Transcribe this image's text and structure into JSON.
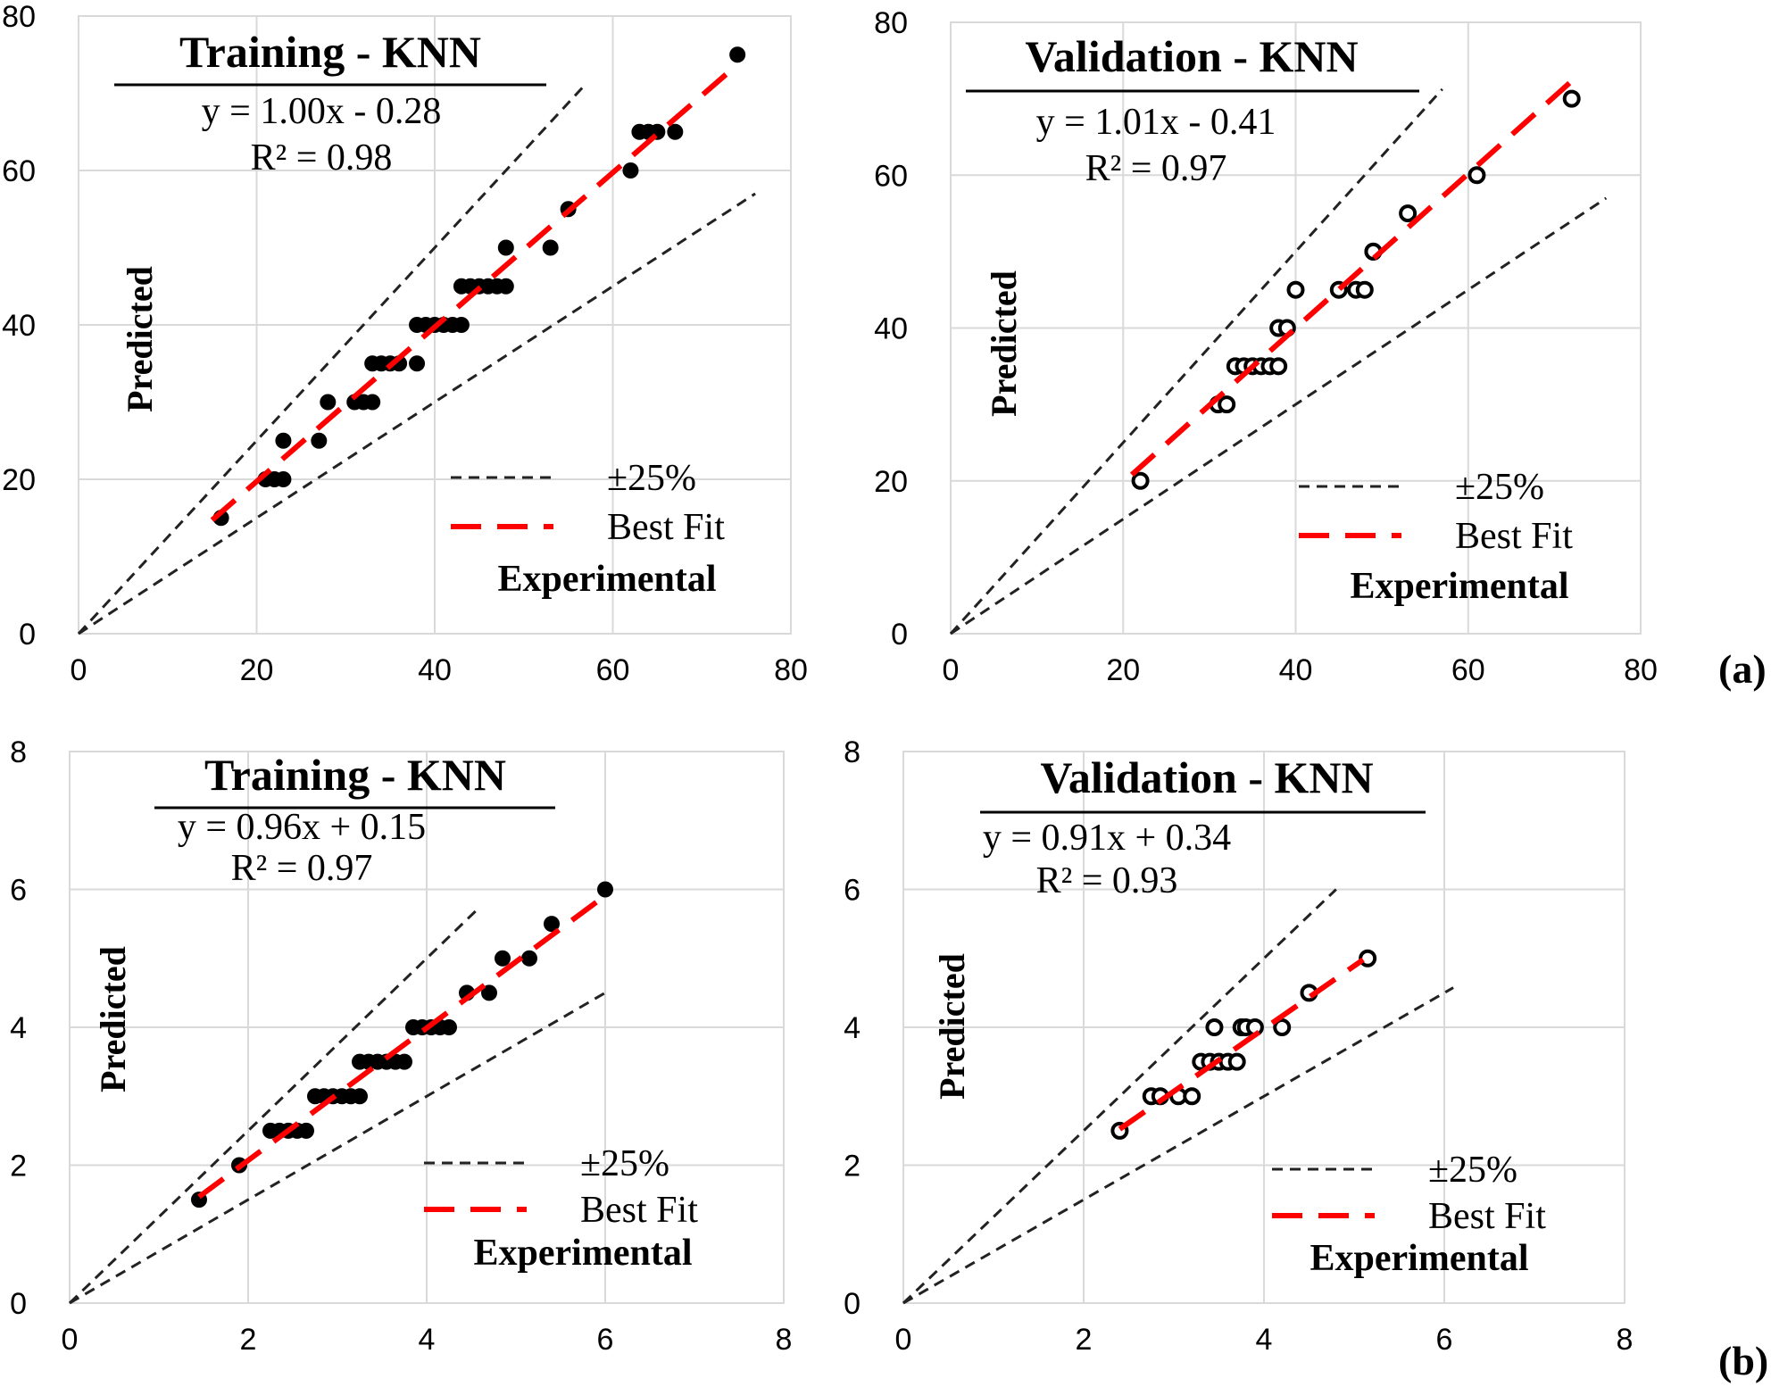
{
  "colors": {
    "best_fit": "#ff0000",
    "tolerance": "#222222",
    "grid": "#d9d9d9",
    "marker": "#000000"
  },
  "panel_labels": {
    "a": "(a)",
    "b": "(b)"
  },
  "chart_data": [
    {
      "type": "scatter",
      "title": "Training - KNN",
      "equation": "y = 1.00x - 0.28",
      "r2": "R² = 0.98",
      "xlabel": "Experimental",
      "ylabel": "Predicted",
      "xlim": [
        0,
        80
      ],
      "ylim": [
        0,
        80
      ],
      "xticks": [
        0,
        20,
        40,
        60,
        80
      ],
      "yticks": [
        0,
        20,
        40,
        60,
        80
      ],
      "marker": "filled",
      "legend": {
        "tolerance_label": "±25%",
        "fit_label": "Best Fit",
        "position": "bottom-right"
      },
      "fit": {
        "slope": 1.0,
        "intercept": -0.28,
        "x_range": [
          15,
          74
        ]
      },
      "tolerance_pct": 25,
      "tolerance_x_max": [
        57,
        76
      ],
      "points": [
        [
          16,
          15
        ],
        [
          21,
          20
        ],
        [
          22,
          20
        ],
        [
          23,
          20
        ],
        [
          23,
          25
        ],
        [
          27,
          25
        ],
        [
          28,
          30
        ],
        [
          31,
          30
        ],
        [
          32,
          30
        ],
        [
          33,
          30
        ],
        [
          33,
          35
        ],
        [
          34,
          35
        ],
        [
          35,
          35
        ],
        [
          36,
          35
        ],
        [
          38,
          35
        ],
        [
          38,
          40
        ],
        [
          39,
          40
        ],
        [
          40,
          40
        ],
        [
          41,
          40
        ],
        [
          42,
          40
        ],
        [
          43,
          40
        ],
        [
          43,
          45
        ],
        [
          44,
          45
        ],
        [
          45,
          45
        ],
        [
          46,
          45
        ],
        [
          47,
          45
        ],
        [
          48,
          45
        ],
        [
          48,
          50
        ],
        [
          53,
          50
        ],
        [
          55,
          55
        ],
        [
          62,
          60
        ],
        [
          63,
          65
        ],
        [
          64,
          65
        ],
        [
          65,
          65
        ],
        [
          67,
          65
        ],
        [
          74,
          75
        ]
      ]
    },
    {
      "type": "scatter",
      "title": "Validation - KNN",
      "equation": "y = 1.01x - 0.41",
      "r2": "R² = 0.97",
      "xlabel": "Experimental",
      "ylabel": "Predicted",
      "xlim": [
        0,
        80
      ],
      "ylim": [
        0,
        80
      ],
      "xticks": [
        0,
        20,
        40,
        60,
        80
      ],
      "yticks": [
        0,
        20,
        40,
        60,
        80
      ],
      "marker": "open",
      "legend": {
        "tolerance_label": "±25%",
        "fit_label": "Best Fit",
        "position": "bottom-right"
      },
      "fit": {
        "slope": 1.01,
        "intercept": -0.41,
        "x_range": [
          21,
          72
        ]
      },
      "tolerance_pct": 25,
      "tolerance_x_max": [
        57,
        76
      ],
      "points": [
        [
          22,
          20
        ],
        [
          31,
          30
        ],
        [
          32,
          30
        ],
        [
          33,
          35
        ],
        [
          34,
          35
        ],
        [
          35,
          35
        ],
        [
          36,
          35
        ],
        [
          37,
          35
        ],
        [
          38,
          35
        ],
        [
          38,
          40
        ],
        [
          39,
          40
        ],
        [
          40,
          45
        ],
        [
          45,
          45
        ],
        [
          47,
          45
        ],
        [
          48,
          45
        ],
        [
          49,
          50
        ],
        [
          49,
          50
        ],
        [
          53,
          55
        ],
        [
          61,
          60
        ],
        [
          72,
          70
        ]
      ]
    },
    {
      "type": "scatter",
      "title": "Training - KNN",
      "equation": "y = 0.96x + 0.15",
      "r2": "R² = 0.97",
      "xlabel": "Experimental",
      "ylabel": "Predicted",
      "xlim": [
        0,
        8
      ],
      "ylim": [
        0,
        8
      ],
      "xticks": [
        0,
        2,
        4,
        6,
        8
      ],
      "yticks": [
        0,
        2,
        4,
        6,
        8
      ],
      "marker": "filled",
      "legend": {
        "tolerance_label": "±25%",
        "fit_label": "Best Fit",
        "position": "bottom-right"
      },
      "fit": {
        "slope": 0.96,
        "intercept": 0.15,
        "x_range": [
          1.45,
          6.0
        ]
      },
      "tolerance_pct": 25,
      "tolerance_x_max": [
        4.6,
        6.0
      ],
      "points": [
        [
          1.45,
          1.5
        ],
        [
          1.9,
          2.0
        ],
        [
          2.25,
          2.5
        ],
        [
          2.35,
          2.5
        ],
        [
          2.45,
          2.5
        ],
        [
          2.55,
          2.5
        ],
        [
          2.65,
          2.5
        ],
        [
          2.75,
          3.0
        ],
        [
          2.85,
          3.0
        ],
        [
          2.95,
          3.0
        ],
        [
          3.05,
          3.0
        ],
        [
          3.15,
          3.0
        ],
        [
          3.25,
          3.0
        ],
        [
          3.25,
          3.5
        ],
        [
          3.35,
          3.5
        ],
        [
          3.45,
          3.5
        ],
        [
          3.55,
          3.5
        ],
        [
          3.65,
          3.5
        ],
        [
          3.75,
          3.5
        ],
        [
          3.85,
          4.0
        ],
        [
          3.95,
          4.0
        ],
        [
          4.05,
          4.0
        ],
        [
          4.15,
          4.0
        ],
        [
          4.25,
          4.0
        ],
        [
          4.45,
          4.5
        ],
        [
          4.7,
          4.5
        ],
        [
          4.85,
          5.0
        ],
        [
          5.15,
          5.0
        ],
        [
          5.4,
          5.5
        ],
        [
          6.0,
          6.0
        ]
      ]
    },
    {
      "type": "scatter",
      "title": "Validation - KNN",
      "equation": "y = 0.91x + 0.34",
      "r2": "R² = 0.93",
      "xlabel": "Experimental",
      "ylabel": "Predicted",
      "xlim": [
        0,
        8
      ],
      "ylim": [
        0,
        8
      ],
      "xticks": [
        0,
        2,
        4,
        6,
        8
      ],
      "yticks": [
        0,
        2,
        4,
        6,
        8
      ],
      "marker": "open",
      "legend": {
        "tolerance_label": "±25%",
        "fit_label": "Best Fit",
        "position": "bottom-right"
      },
      "fit": {
        "slope": 0.91,
        "intercept": 0.34,
        "x_range": [
          2.4,
          5.1
        ]
      },
      "tolerance_pct": 25,
      "tolerance_x_max": [
        4.8,
        6.1
      ],
      "points": [
        [
          2.4,
          2.5
        ],
        [
          2.75,
          3.0
        ],
        [
          2.85,
          3.0
        ],
        [
          3.05,
          3.0
        ],
        [
          3.2,
          3.0
        ],
        [
          3.3,
          3.5
        ],
        [
          3.4,
          3.5
        ],
        [
          3.5,
          3.5
        ],
        [
          3.6,
          3.5
        ],
        [
          3.7,
          3.5
        ],
        [
          3.45,
          4.0
        ],
        [
          3.75,
          4.0
        ],
        [
          3.8,
          4.0
        ],
        [
          3.9,
          4.0
        ],
        [
          4.2,
          4.0
        ],
        [
          4.5,
          4.5
        ],
        [
          5.15,
          5.0
        ]
      ]
    }
  ]
}
